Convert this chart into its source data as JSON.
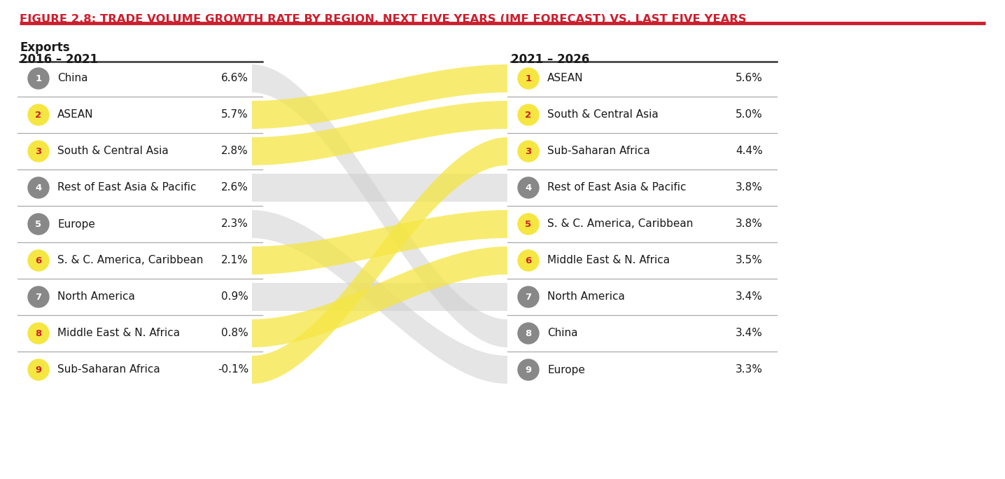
{
  "title": "FIGURE 2.8: TRADE VOLUME GROWTH RATE BY REGION, NEXT FIVE YEARS (IMF FORECAST) VS. LAST FIVE YEARS",
  "subtitle": "Exports",
  "left_period": "2016 – 2021",
  "right_period": "2021 – 2026",
  "left_data": [
    {
      "rank": 1,
      "name": "China",
      "value": "6.6%",
      "highlight": false
    },
    {
      "rank": 2,
      "name": "ASEAN",
      "value": "5.7%",
      "highlight": true
    },
    {
      "rank": 3,
      "name": "South & Central Asia",
      "value": "2.8%",
      "highlight": true
    },
    {
      "rank": 4,
      "name": "Rest of East Asia & Pacific",
      "value": "2.6%",
      "highlight": false
    },
    {
      "rank": 5,
      "name": "Europe",
      "value": "2.3%",
      "highlight": false
    },
    {
      "rank": 6,
      "name": "S. & C. America, Caribbean",
      "value": "2.1%",
      "highlight": true
    },
    {
      "rank": 7,
      "name": "North America",
      "value": "0.9%",
      "highlight": false
    },
    {
      "rank": 8,
      "name": "Middle East & N. Africa",
      "value": "0.8%",
      "highlight": true
    },
    {
      "rank": 9,
      "name": "Sub-Saharan Africa",
      "value": "-0.1%",
      "highlight": true
    }
  ],
  "right_data": [
    {
      "rank": 1,
      "name": "ASEAN",
      "value": "5.6%",
      "highlight": true
    },
    {
      "rank": 2,
      "name": "South & Central Asia",
      "value": "5.0%",
      "highlight": true
    },
    {
      "rank": 3,
      "name": "Sub-Saharan Africa",
      "value": "4.4%",
      "highlight": true
    },
    {
      "rank": 4,
      "name": "Rest of East Asia & Pacific",
      "value": "3.8%",
      "highlight": false
    },
    {
      "rank": 5,
      "name": "S. & C. America, Caribbean",
      "value": "3.8%",
      "highlight": true
    },
    {
      "rank": 6,
      "name": "Middle East & N. Africa",
      "value": "3.5%",
      "highlight": true
    },
    {
      "rank": 7,
      "name": "North America",
      "value": "3.4%",
      "highlight": false
    },
    {
      "rank": 8,
      "name": "China",
      "value": "3.4%",
      "highlight": false
    },
    {
      "rank": 9,
      "name": "Europe",
      "value": "3.3%",
      "highlight": false
    }
  ],
  "title_color": "#cc1f2d",
  "highlight_color": "#f5e642",
  "gray_color": "#888888",
  "text_color": "#1a1a1a",
  "line_color": "#aaaaaa",
  "band_yellow_color": "#f5e642",
  "band_gray_color": "#cccccc",
  "background_color": "#ffffff"
}
